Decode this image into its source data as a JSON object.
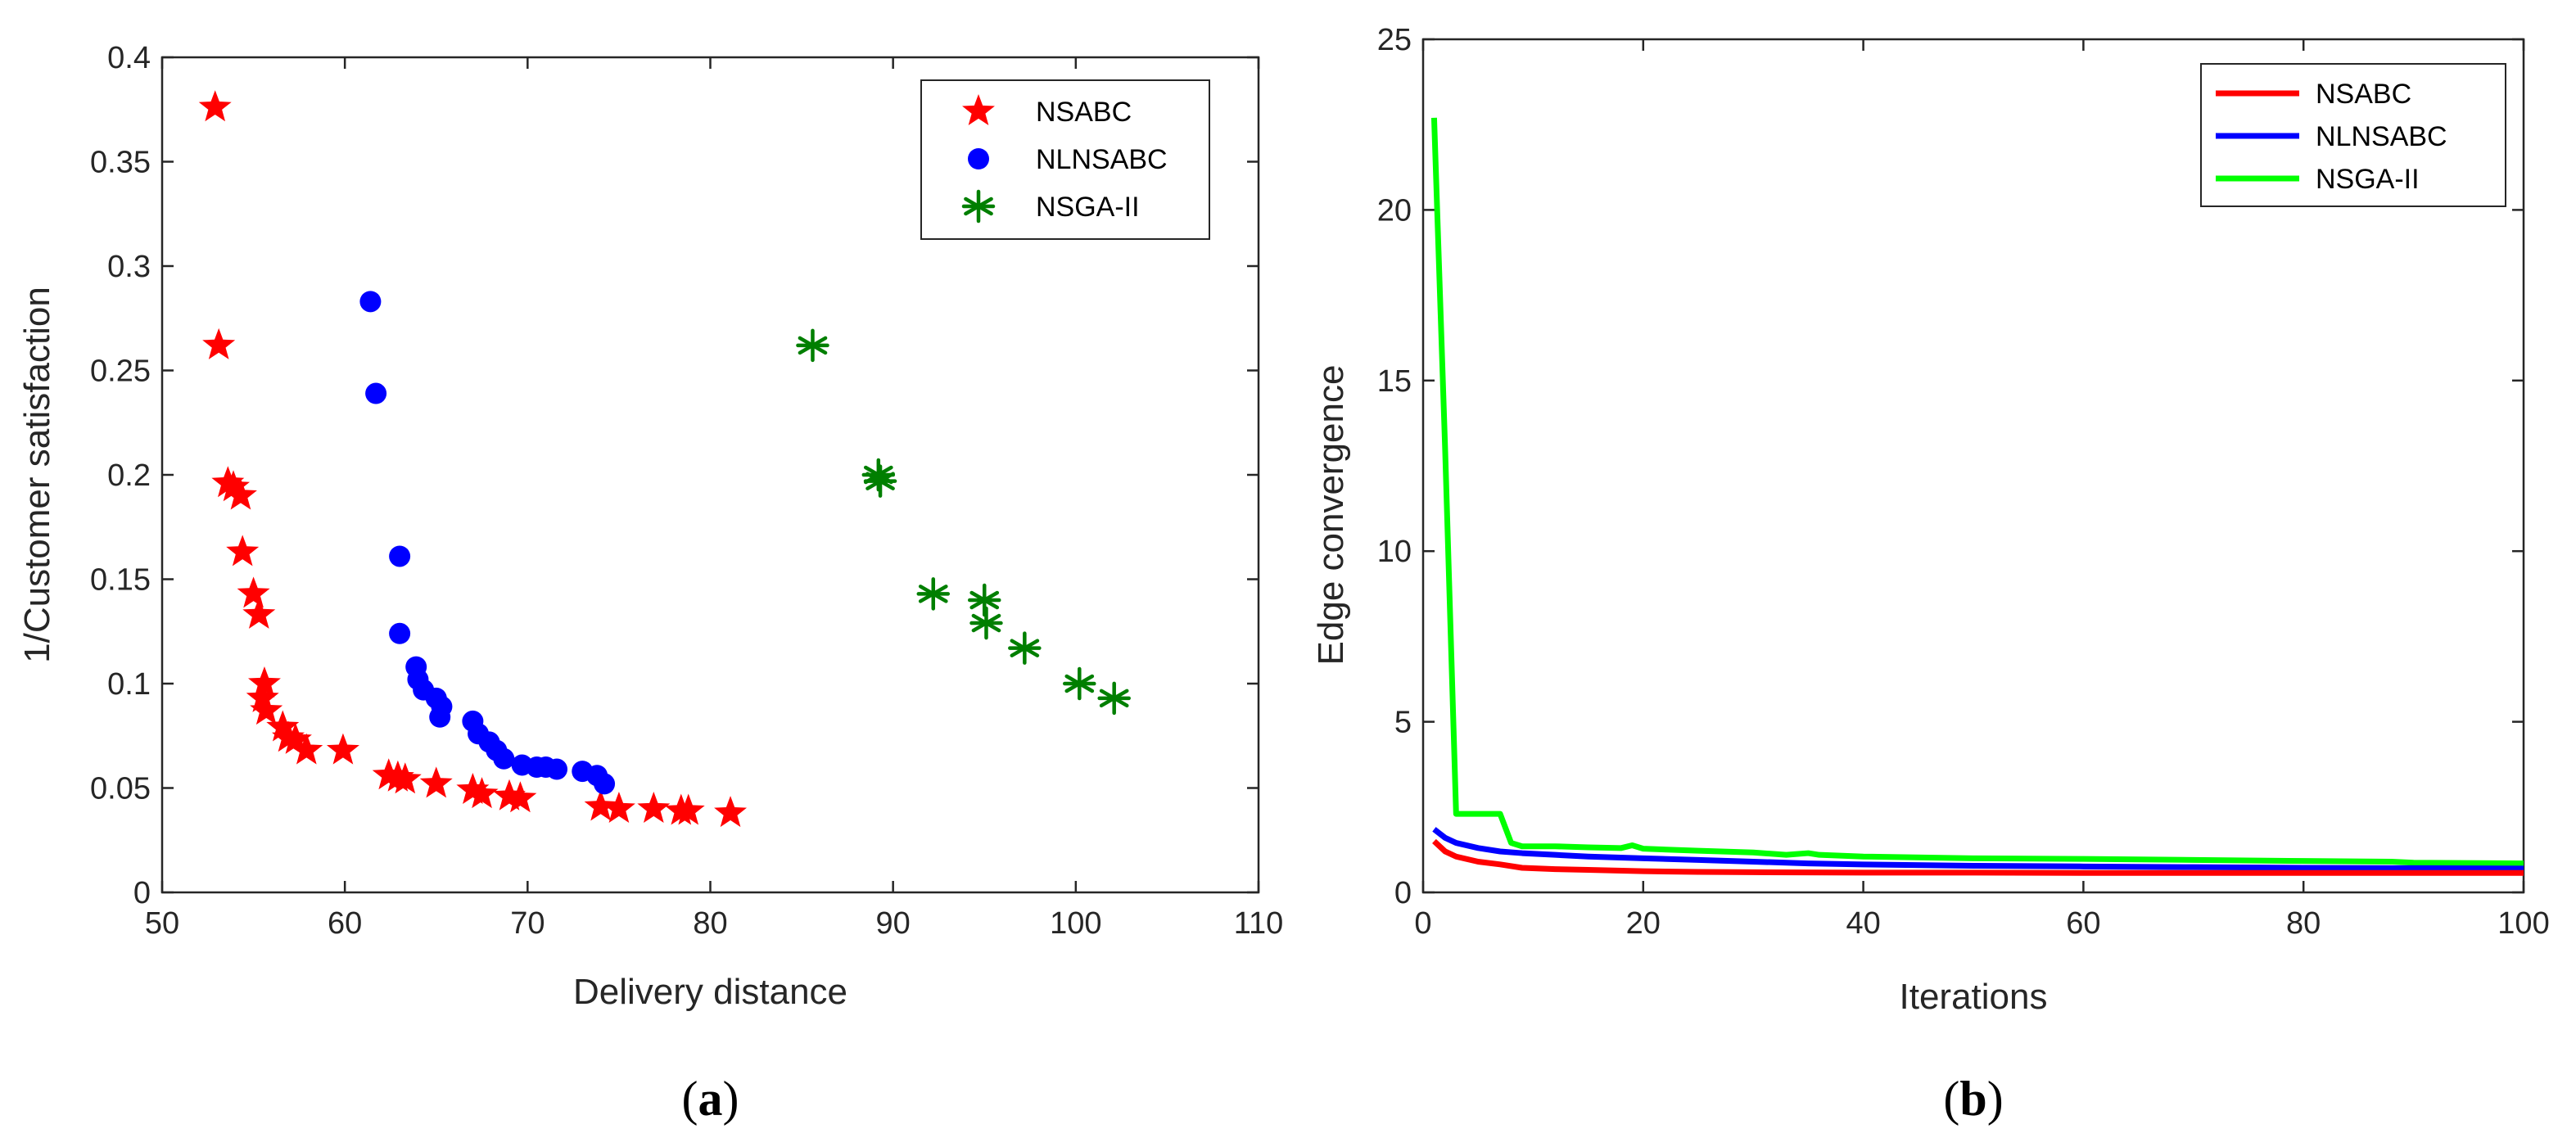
{
  "chart_data": [
    {
      "type": "scatter",
      "caption": "a",
      "xlabel": "Delivery distance",
      "ylabel": "1/Customer satisfaction",
      "xlim": [
        50,
        110
      ],
      "ylim": [
        0,
        0.4
      ],
      "xticks": [
        50,
        60,
        70,
        80,
        90,
        100,
        110
      ],
      "yticks": [
        0,
        0.05,
        0.1,
        0.15,
        0.2,
        0.25,
        0.3,
        0.35,
        0.4
      ],
      "ytick_labels": [
        "0",
        "0.05",
        "0.1",
        "0.15",
        "0.2",
        "0.25",
        "0.3",
        "0.35",
        "0.4"
      ],
      "legend_position": "top-right",
      "series": [
        {
          "name": "NSABC",
          "marker": "star",
          "color": "#ff0000",
          "points": [
            [
              52.9,
              0.376
            ],
            [
              53.1,
              0.262
            ],
            [
              53.6,
              0.196
            ],
            [
              53.9,
              0.194
            ],
            [
              54.3,
              0.19
            ],
            [
              54.4,
              0.163
            ],
            [
              55.0,
              0.143
            ],
            [
              55.3,
              0.133
            ],
            [
              55.6,
              0.1
            ],
            [
              55.5,
              0.093
            ],
            [
              55.7,
              0.087
            ],
            [
              56.6,
              0.079
            ],
            [
              56.9,
              0.074
            ],
            [
              57.3,
              0.073
            ],
            [
              57.9,
              0.068
            ],
            [
              59.9,
              0.068
            ],
            [
              62.4,
              0.056
            ],
            [
              62.9,
              0.055
            ],
            [
              63.3,
              0.054
            ],
            [
              65.0,
              0.052
            ],
            [
              67.0,
              0.049
            ],
            [
              67.5,
              0.047
            ],
            [
              69.0,
              0.046
            ],
            [
              69.6,
              0.045
            ],
            [
              74.0,
              0.041
            ],
            [
              75.0,
              0.04
            ],
            [
              76.9,
              0.04
            ],
            [
              78.4,
              0.039
            ],
            [
              78.8,
              0.039
            ],
            [
              81.1,
              0.038
            ]
          ]
        },
        {
          "name": "NLNSABC",
          "marker": "circle",
          "color": "#0000ff",
          "points": [
            [
              61.4,
              0.283
            ],
            [
              61.7,
              0.239
            ],
            [
              63.0,
              0.161
            ],
            [
              63.0,
              0.124
            ],
            [
              63.9,
              0.108
            ],
            [
              64.0,
              0.102
            ],
            [
              64.3,
              0.097
            ],
            [
              65.0,
              0.093
            ],
            [
              65.3,
              0.089
            ],
            [
              65.2,
              0.084
            ],
            [
              67.0,
              0.082
            ],
            [
              67.3,
              0.076
            ],
            [
              67.9,
              0.072
            ],
            [
              68.3,
              0.068
            ],
            [
              68.7,
              0.064
            ],
            [
              69.7,
              0.061
            ],
            [
              70.5,
              0.06
            ],
            [
              71.0,
              0.06
            ],
            [
              71.6,
              0.059
            ],
            [
              73.0,
              0.058
            ],
            [
              73.8,
              0.056
            ],
            [
              74.2,
              0.052
            ]
          ]
        },
        {
          "name": "NSGA-II",
          "marker": "asterisk",
          "color": "#007f00",
          "points": [
            [
              85.6,
              0.262
            ],
            [
              89.2,
              0.2
            ],
            [
              89.3,
              0.197
            ],
            [
              92.2,
              0.143
            ],
            [
              95.0,
              0.14
            ],
            [
              95.1,
              0.129
            ],
            [
              97.2,
              0.117
            ],
            [
              100.2,
              0.1
            ],
            [
              102.1,
              0.093
            ]
          ]
        }
      ]
    },
    {
      "type": "line",
      "caption": "b",
      "xlabel": "Iterations",
      "ylabel": "Edge convergence",
      "xlim": [
        0,
        100
      ],
      "ylim": [
        0,
        25
      ],
      "xticks": [
        0,
        20,
        40,
        60,
        80,
        100
      ],
      "yticks": [
        0,
        5,
        10,
        15,
        20,
        25
      ],
      "legend_position": "top-right",
      "series": [
        {
          "name": "NSABC",
          "color": "#ff0000",
          "x": [
            1,
            2,
            3,
            5,
            7,
            9,
            12,
            15,
            20,
            25,
            30,
            40,
            50,
            60,
            70,
            80,
            90,
            100
          ],
          "values": [
            1.5,
            1.2,
            1.05,
            0.9,
            0.82,
            0.72,
            0.68,
            0.66,
            0.62,
            0.6,
            0.59,
            0.58,
            0.58,
            0.57,
            0.57,
            0.57,
            0.57,
            0.57
          ]
        },
        {
          "name": "NLNSABC",
          "color": "#0000ff",
          "x": [
            1,
            2,
            3,
            5,
            7,
            9,
            12,
            15,
            20,
            25,
            30,
            35,
            40,
            50,
            60,
            70,
            80,
            90,
            100
          ],
          "values": [
            1.85,
            1.6,
            1.45,
            1.3,
            1.2,
            1.15,
            1.1,
            1.05,
            1.0,
            0.95,
            0.9,
            0.85,
            0.82,
            0.78,
            0.76,
            0.74,
            0.72,
            0.71,
            0.7
          ]
        },
        {
          "name": "NSGA-II",
          "color": "#00ff00",
          "x": [
            1,
            2,
            3,
            7,
            8,
            9,
            12,
            15,
            18,
            19,
            20,
            25,
            30,
            33,
            35,
            36,
            40,
            50,
            60,
            70,
            80,
            88,
            90,
            100
          ],
          "values": [
            22.7,
            13.0,
            2.3,
            2.3,
            1.45,
            1.35,
            1.35,
            1.32,
            1.3,
            1.38,
            1.28,
            1.22,
            1.17,
            1.1,
            1.15,
            1.1,
            1.05,
            1.0,
            0.98,
            0.95,
            0.92,
            0.9,
            0.87,
            0.85
          ]
        }
      ]
    }
  ]
}
